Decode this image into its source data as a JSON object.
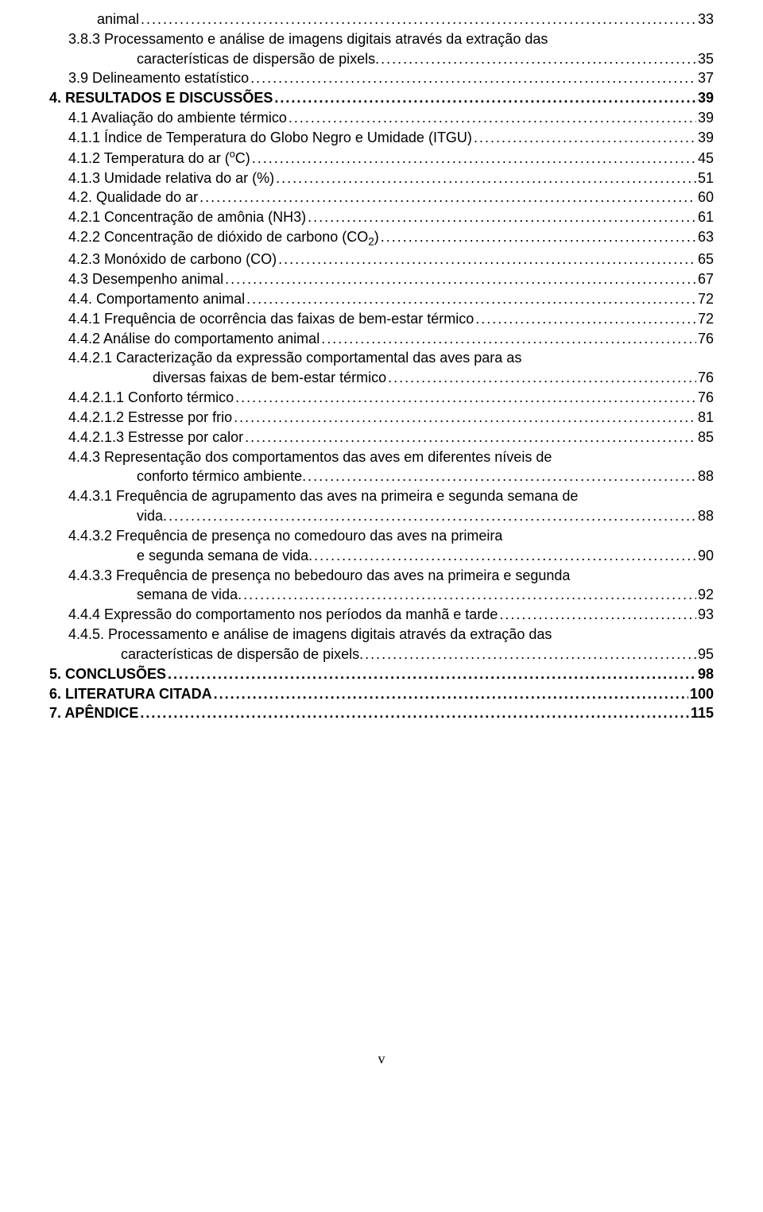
{
  "entries": [
    {
      "type": "cont",
      "text": "animal",
      "page": "33",
      "indentClass": "indent-1"
    },
    {
      "type": "multi",
      "indentClass": "indent-1b",
      "lines": [
        "3.8.3 Processamento e análise de imagens digitais através da extração das"
      ],
      "lastIndent": "continuation",
      "lastText": "características de dispersão de pixels. ",
      "page": "35"
    },
    {
      "type": "single",
      "text": "3.9 Delineamento estatístico",
      "page": "37",
      "indentClass": "indent-1b"
    },
    {
      "type": "single",
      "text": "4. RESULTADOS E DISCUSSÕES",
      "page": "39",
      "bold": true,
      "indentClass": "indent-0"
    },
    {
      "type": "single",
      "text": "4.1 Avaliação do ambiente térmico",
      "page": "39",
      "indentClass": "indent-1b"
    },
    {
      "type": "single",
      "text": "4.1.1 Índice de Temperatura do Globo Negro e Umidade (ITGU)",
      "page": "39",
      "indentClass": "indent-1b"
    },
    {
      "type": "singleHTML",
      "html": "4.1.2 Temperatura do ar (<span class=\"sup\">o</span>C) ",
      "page": "45",
      "indentClass": "indent-1b"
    },
    {
      "type": "single",
      "text": "4.1.3 Umidade relativa do ar (%)",
      "page": "51",
      "indentClass": "indent-1b"
    },
    {
      "type": "single",
      "text": "4.2. Qualidade do ar",
      "page": "60",
      "indentClass": "indent-1b"
    },
    {
      "type": "single",
      "text": "4.2.1 Concentração de amônia (NH3)",
      "page": "61",
      "indentClass": "indent-1b"
    },
    {
      "type": "singleHTML",
      "html": "4.2.2 Concentração de dióxido de carbono (CO<span class=\"sub\">2</span>)",
      "page": "63",
      "indentClass": "indent-1b"
    },
    {
      "type": "single",
      "text": "4.2.3 Monóxido de carbono (CO) ",
      "page": "65",
      "indentClass": "indent-1b"
    },
    {
      "type": "single",
      "text": "4.3 Desempenho animal",
      "page": "67",
      "indentClass": "indent-1b"
    },
    {
      "type": "single",
      "text": "4.4. Comportamento animal",
      "page": "72",
      "indentClass": "indent-1b"
    },
    {
      "type": "single",
      "text": "4.4.1 Frequência de ocorrência das faixas de bem-estar térmico",
      "page": "72",
      "indentClass": "indent-1b"
    },
    {
      "type": "single",
      "text": "4.4.2 Análise do comportamento animal",
      "page": "76",
      "indentClass": "indent-1b"
    },
    {
      "type": "multi",
      "indentClass": "indent-1b",
      "lines": [
        "4.4.2.1 Caracterização da expressão comportamental das aves para as"
      ],
      "lastIndent": "continuation2",
      "lastText": "diversas faixas de bem-estar térmico",
      "page": "76"
    },
    {
      "type": "single",
      "text": "4.4.2.1.1 Conforto térmico",
      "page": "76",
      "indentClass": "indent-1b"
    },
    {
      "type": "single",
      "text": "4.4.2.1.2 Estresse por frio",
      "page": "81",
      "indentClass": "indent-1b"
    },
    {
      "type": "single",
      "text": "4.4.2.1.3 Estresse por calor",
      "page": "85",
      "indentClass": "indent-1b"
    },
    {
      "type": "multi",
      "indentClass": "indent-1b",
      "lines": [
        "4.4.3 Representação dos comportamentos das aves em diferentes níveis de"
      ],
      "lastIndent": "continuation",
      "lastText": "conforto térmico ambiente.",
      "page": "88"
    },
    {
      "type": "multi",
      "indentClass": "indent-1b",
      "lines": [
        "4.4.3.1 Frequência de agrupamento das aves na primeira e segunda semana de"
      ],
      "lastIndent": "continuation",
      "lastText": "vida.",
      "page": "88"
    },
    {
      "type": "multi",
      "indentClass": "indent-1b",
      "lines": [
        "4.4.3.2 Frequência de presença no comedouro das aves na primeira"
      ],
      "lastIndent": "continuation",
      "lastText": "e segunda semana de vida. ",
      "page": "90"
    },
    {
      "type": "multi",
      "indentClass": "indent-1b",
      "lines": [
        "4.4.3.3 Frequência de presença no bebedouro das aves na primeira e segunda"
      ],
      "lastIndent": "continuation",
      "lastText": "semana de vida. ",
      "page": "92"
    },
    {
      "type": "single",
      "text": "4.4.4 Expressão do comportamento nos períodos da manhã e tarde",
      "page": "93",
      "indentClass": "indent-1b"
    },
    {
      "type": "multi",
      "indentClass": "indent-1b",
      "lines": [
        "4.4.5. Processamento e análise de imagens digitais através da extração das"
      ],
      "lastIndent": "indent-2",
      "lastText": "características de dispersão de pixels.",
      "page": "95"
    },
    {
      "type": "single",
      "text": "5. CONCLUSÕES",
      "page": "98",
      "bold": true,
      "indentClass": "indent-0"
    },
    {
      "type": "single",
      "text": "6. LITERATURA CITADA",
      "page": "100",
      "bold": true,
      "indentClass": "indent-0"
    },
    {
      "type": "single",
      "text": "7. APÊNDICE",
      "page": "115",
      "bold": true,
      "indentClass": "indent-0"
    }
  ],
  "footer": "v"
}
